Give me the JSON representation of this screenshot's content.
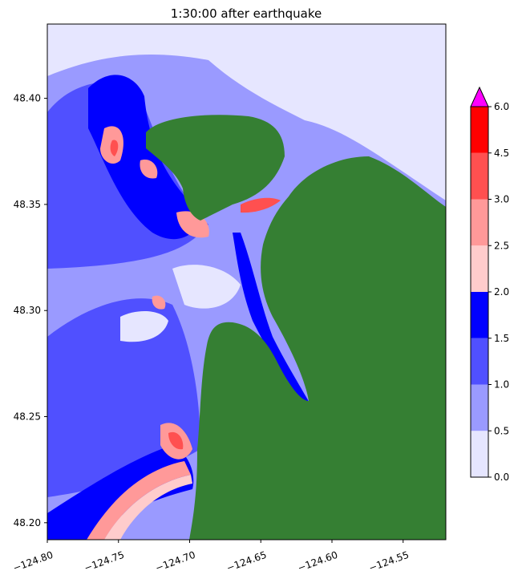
{
  "chart_data": {
    "type": "heatmap",
    "title": "1:30:00 after earthquake",
    "xlabel": "",
    "ylabel": "",
    "xlim": [
      -124.8,
      -124.52
    ],
    "ylim": [
      48.192,
      48.435
    ],
    "x_ticks": [
      -124.8,
      -124.75,
      -124.7,
      -124.65,
      -124.6,
      -124.55
    ],
    "x_tick_labels": [
      "−124.80",
      "−124.75",
      "−124.70",
      "−124.65",
      "−124.60",
      "−124.55"
    ],
    "y_ticks": [
      48.2,
      48.25,
      48.3,
      48.35,
      48.4
    ],
    "y_tick_labels": [
      "48.20",
      "48.25",
      "48.30",
      "48.35",
      "48.40"
    ],
    "land_color": "#357f33",
    "grid": false,
    "colorbar": {
      "placement": "right",
      "extend": "max",
      "extend_color": "#ff00ff",
      "levels": [
        0.0,
        0.5,
        1.0,
        1.5,
        2.0,
        2.5,
        3.0,
        4.5,
        6.0
      ],
      "level_labels": [
        "0.0",
        "0.5",
        "1.0",
        "1.5",
        "2.0",
        "2.5",
        "3.0",
        "4.5",
        "6.0"
      ],
      "colors": [
        "#e6e6ff",
        "#9a9aff",
        "#5050ff",
        "#0000ff",
        "#ffcccc",
        "#ff9999",
        "#ff5050",
        "#ff0000"
      ]
    }
  }
}
